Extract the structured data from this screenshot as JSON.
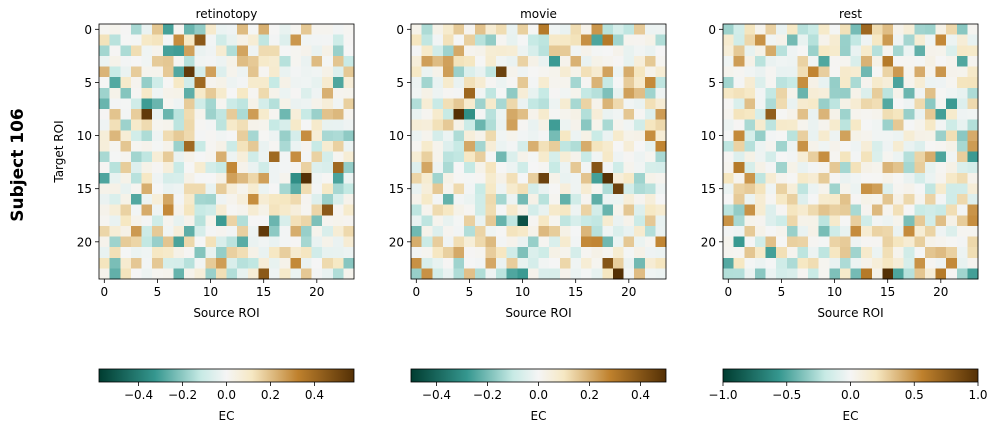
{
  "figure": {
    "suptitle": "Subject 106",
    "x_label": "Source ROI",
    "y_label": "Target ROI",
    "colorbar_label": "EC"
  },
  "palette": {
    "negative_end": "#003c30",
    "negative_mid": "#35978f",
    "negative_light": "#c7eae5",
    "center": "#f5f5f5",
    "positive_light": "#f6e8c3",
    "positive_mid": "#bf812d",
    "positive_end": "#543005"
  },
  "chart_data": [
    {
      "type": "heatmap",
      "title": "retinotopy",
      "xlabel": "Source ROI",
      "ylabel": "Target ROI",
      "n_rois": 24,
      "x_ticks": [
        0,
        5,
        10,
        15,
        20
      ],
      "y_ticks": [
        0,
        5,
        10,
        15,
        20
      ],
      "color_range": [
        -0.58,
        0.58
      ],
      "colorbar_ticks": [
        -0.4,
        -0.2,
        0.0,
        0.2,
        0.4
      ],
      "colorbar_tick_labels": [
        "−0.4",
        "−0.2",
        "0.0",
        "0.2",
        "0.4"
      ],
      "colorbar_label": "EC",
      "salient_cells": [
        {
          "source": 6,
          "target": 0,
          "value": -0.3
        },
        {
          "source": 8,
          "target": 0,
          "value": -0.25
        },
        {
          "source": 7,
          "target": 1,
          "value": 0.3
        },
        {
          "source": 9,
          "target": 1,
          "value": 0.45
        },
        {
          "source": 8,
          "target": 4,
          "value": 0.55
        },
        {
          "source": 9,
          "target": 5,
          "value": 0.4
        },
        {
          "source": 4,
          "target": 8,
          "value": 0.55
        },
        {
          "source": 6,
          "target": 8,
          "value": -0.25
        },
        {
          "source": 8,
          "target": 11,
          "value": 0.4
        },
        {
          "source": 16,
          "target": 12,
          "value": 0.4
        },
        {
          "source": 18,
          "target": 12,
          "value": 0.3
        },
        {
          "source": 18,
          "target": 14,
          "value": -0.35
        },
        {
          "source": 19,
          "target": 14,
          "value": 0.58
        },
        {
          "source": 22,
          "target": 13,
          "value": 0.4
        },
        {
          "source": 21,
          "target": 17,
          "value": 0.45
        },
        {
          "source": 15,
          "target": 19,
          "value": 0.55
        },
        {
          "source": 15,
          "target": 23,
          "value": 0.45
        }
      ]
    },
    {
      "type": "heatmap",
      "title": "movie",
      "xlabel": "Source ROI",
      "ylabel": "",
      "n_rois": 24,
      "x_ticks": [
        0,
        5,
        10,
        15,
        20
      ],
      "y_ticks": [
        0,
        5,
        10,
        15,
        20
      ],
      "color_range": [
        -0.5,
        0.5
      ],
      "colorbar_ticks": [
        -0.4,
        -0.2,
        0.0,
        0.2,
        0.4
      ],
      "colorbar_tick_labels": [
        "−0.4",
        "−0.2",
        "0.0",
        "0.2",
        "0.4"
      ],
      "colorbar_label": "EC",
      "salient_cells": [
        {
          "source": 12,
          "target": 0,
          "value": 0.3
        },
        {
          "source": 17,
          "target": 1,
          "value": -0.25
        },
        {
          "source": 18,
          "target": 1,
          "value": 0.3
        },
        {
          "source": 8,
          "target": 4,
          "value": 0.45
        },
        {
          "source": 5,
          "target": 6,
          "value": 0.35
        },
        {
          "source": 4,
          "target": 8,
          "value": 0.5
        },
        {
          "source": 5,
          "target": 8,
          "value": -0.3
        },
        {
          "source": 12,
          "target": 14,
          "value": 0.45
        },
        {
          "source": 18,
          "target": 14,
          "value": 0.5
        },
        {
          "source": 19,
          "target": 15,
          "value": 0.45
        },
        {
          "source": 17,
          "target": 13,
          "value": 0.4
        },
        {
          "source": 10,
          "target": 18,
          "value": -0.45
        },
        {
          "source": 18,
          "target": 22,
          "value": 0.4
        },
        {
          "source": 19,
          "target": 23,
          "value": 0.5
        }
      ]
    },
    {
      "type": "heatmap",
      "title": "rest",
      "xlabel": "Source ROI",
      "ylabel": "",
      "n_rois": 24,
      "x_ticks": [
        0,
        5,
        10,
        15,
        20
      ],
      "y_ticks": [
        0,
        5,
        10,
        15,
        20
      ],
      "color_range": [
        -1.0,
        1.0
      ],
      "colorbar_ticks": [
        -1.0,
        -0.5,
        0.0,
        0.5,
        1.0
      ],
      "colorbar_tick_labels": [
        "−1.0",
        "−0.5",
        "0.0",
        "0.5",
        "1.0"
      ],
      "colorbar_label": "EC",
      "salient_cells": [
        {
          "source": 13,
          "target": 0,
          "value": 0.7
        },
        {
          "source": 3,
          "target": 1,
          "value": 0.5
        },
        {
          "source": 15,
          "target": 3,
          "value": 0.6
        },
        {
          "source": 8,
          "target": 4,
          "value": 0.55
        },
        {
          "source": 4,
          "target": 8,
          "value": 0.75
        },
        {
          "source": 7,
          "target": 11,
          "value": 0.5
        },
        {
          "source": 1,
          "target": 13,
          "value": 0.6
        },
        {
          "source": 13,
          "target": 15,
          "value": 0.5
        },
        {
          "source": 1,
          "target": 20,
          "value": -0.55
        },
        {
          "source": 13,
          "target": 23,
          "value": 0.6
        },
        {
          "source": 15,
          "target": 23,
          "value": 1.0
        },
        {
          "source": 16,
          "target": 23,
          "value": -0.5
        },
        {
          "source": 3,
          "target": 23,
          "value": -0.35
        },
        {
          "source": 20,
          "target": 23,
          "value": 0.6
        }
      ]
    }
  ]
}
